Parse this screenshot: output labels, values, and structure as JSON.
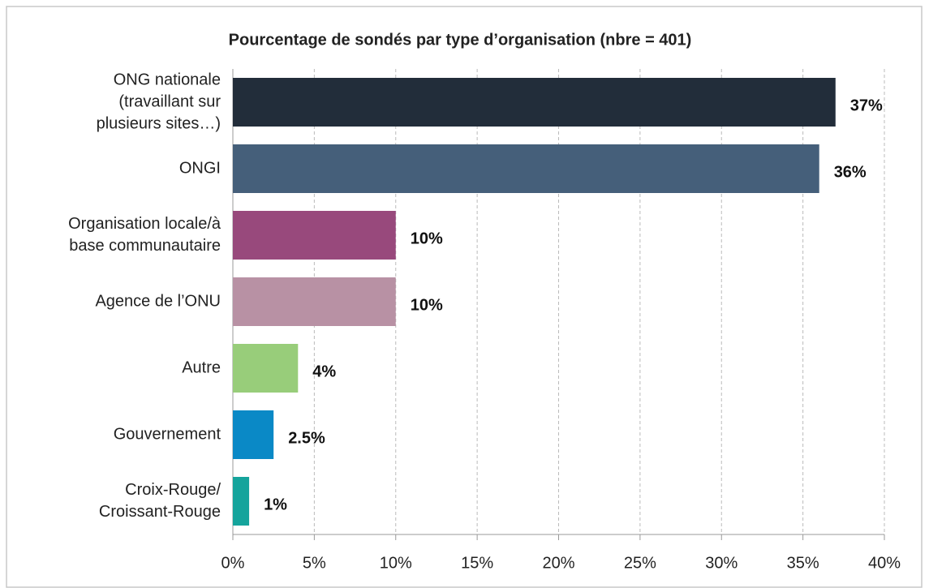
{
  "chart_data": {
    "type": "bar",
    "orientation": "horizontal",
    "title": "Pourcentage de sondés par type d’organisation (nbre = 401)",
    "categories": [
      [
        "ONG nationale",
        "(travaillant sur",
        "plusieurs sites…)"
      ],
      [
        "ONGI"
      ],
      [
        "Organisation locale/à",
        "base communautaire"
      ],
      [
        "Agence de l’ONU"
      ],
      [
        "Autre"
      ],
      [
        "Gouvernement"
      ],
      [
        "Croix-Rouge/",
        "Croissant-Rouge"
      ]
    ],
    "values": [
      37,
      36,
      10,
      10,
      4,
      2.5,
      1
    ],
    "value_labels": [
      "37%",
      "36%",
      "10%",
      "10%",
      "4%",
      "2.5%",
      "1%"
    ],
    "colors": [
      "#222d3a",
      "#455f7a",
      "#98497c",
      "#b891a4",
      "#98cd7a",
      "#0a89c6",
      "#15a49c"
    ],
    "xlim": [
      0,
      40
    ],
    "xticks": [
      {
        "value": 0,
        "label": "0%"
      },
      {
        "value": 5,
        "label": "5%"
      },
      {
        "value": 10,
        "label": "10%"
      },
      {
        "value": 15,
        "label": "15%"
      },
      {
        "value": 20,
        "label": "20%"
      },
      {
        "value": 25,
        "label": "25%"
      },
      {
        "value": 30,
        "label": "30%"
      },
      {
        "value": 35,
        "label": "35%"
      },
      {
        "value": 40,
        "label": "40%"
      }
    ],
    "grid": true
  }
}
